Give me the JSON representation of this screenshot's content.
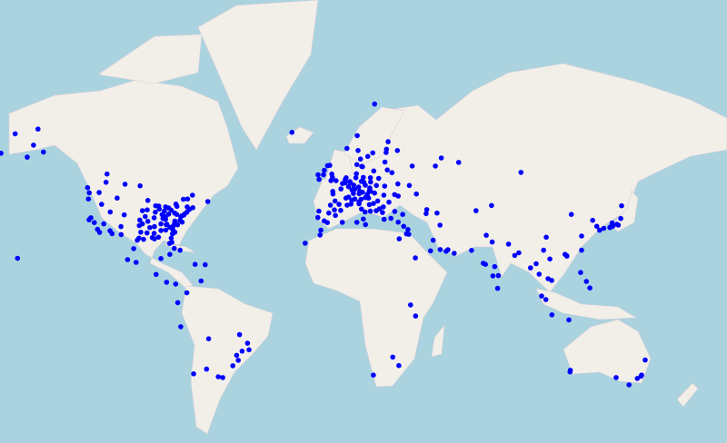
{
  "map": {
    "projection": "web-mercator",
    "colors": {
      "ocean": "#aad3df",
      "land": "#f2efe9",
      "marker": "#0000ff"
    },
    "points": [
      [
        40.7,
        -74
      ],
      [
        42.4,
        -71
      ],
      [
        40,
        -75.2
      ],
      [
        38.9,
        -77
      ],
      [
        39.3,
        -76.6
      ],
      [
        40.4,
        -80
      ],
      [
        41.5,
        -81.7
      ],
      [
        42.3,
        -83
      ],
      [
        41.9,
        -87.6
      ],
      [
        39.8,
        -86.2
      ],
      [
        40,
        -83
      ],
      [
        39.1,
        -84.5
      ],
      [
        38.3,
        -85.8
      ],
      [
        36.2,
        -86.8
      ],
      [
        33.7,
        -84.4
      ],
      [
        35.2,
        -80.8
      ],
      [
        35.8,
        -78.6
      ],
      [
        37.5,
        -77.4
      ],
      [
        36.9,
        -76.3
      ],
      [
        30.3,
        -81.7
      ],
      [
        28.5,
        -81.4
      ],
      [
        28,
        -82.5
      ],
      [
        25.8,
        -80.2
      ],
      [
        30,
        -90
      ],
      [
        29.8,
        -95.4
      ],
      [
        32.8,
        -96.8
      ],
      [
        30.3,
        -97.7
      ],
      [
        29.4,
        -98.5
      ],
      [
        35.5,
        -97.5
      ],
      [
        39.1,
        -94.6
      ],
      [
        38.6,
        -90.2
      ],
      [
        35.1,
        -90
      ],
      [
        45,
        -93.3
      ],
      [
        43,
        -87.9
      ],
      [
        39.7,
        -105
      ],
      [
        40.8,
        -111.9
      ],
      [
        33.4,
        -112
      ],
      [
        35.1,
        -106.6
      ],
      [
        34,
        -118.2
      ],
      [
        32.7,
        -117.2
      ],
      [
        37.8,
        -122.4
      ],
      [
        47.6,
        -122.3
      ],
      [
        45.5,
        -122.7
      ],
      [
        36.2,
        -115.1
      ],
      [
        43.7,
        -79.4
      ],
      [
        45.5,
        -73.6
      ],
      [
        45.4,
        -75.7
      ],
      [
        49.3,
        -123.1
      ],
      [
        51,
        -114
      ],
      [
        49.9,
        -97.1
      ],
      [
        41.6,
        -93.6
      ],
      [
        41.3,
        -96
      ],
      [
        34.7,
        -92.3
      ],
      [
        33.5,
        -86.8
      ],
      [
        36,
        -83.9
      ],
      [
        42.9,
        -78.9
      ],
      [
        42.7,
        -73.8
      ],
      [
        41.8,
        -72.7
      ],
      [
        43.1,
        -89.4
      ],
      [
        38,
        -84.5
      ],
      [
        32.8,
        -79.9
      ],
      [
        32.1,
        -81.1
      ],
      [
        36.2,
        -96
      ],
      [
        37.7,
        -97.3
      ],
      [
        31.8,
        -106.5
      ],
      [
        43.6,
        -116.2
      ],
      [
        47.7,
        -117.4
      ],
      [
        45.8,
        -108.5
      ],
      [
        34,
        -81
      ],
      [
        30.7,
        -88
      ],
      [
        32.3,
        -90.2
      ],
      [
        32.5,
        -93.7
      ],
      [
        30.5,
        -91.1
      ],
      [
        44.6,
        -63.6
      ],
      [
        46.8,
        -71.2
      ],
      [
        53.5,
        -113.5
      ],
      [
        50.4,
        -104.6
      ],
      [
        38.6,
        -121.5
      ],
      [
        36.7,
        -119.8
      ],
      [
        32.2,
        -111
      ],
      [
        37.3,
        -79.9
      ],
      [
        39.9,
        -79
      ],
      [
        41.1,
        -85.1
      ],
      [
        42.7,
        -84.5
      ],
      [
        40.7,
        -89.6
      ],
      [
        37.2,
        -93.3
      ],
      [
        35.9,
        -84.2
      ],
      [
        34.8,
        -82.4
      ],
      [
        36.1,
        -80.2
      ],
      [
        39.6,
        -75.5
      ],
      [
        19.4,
        -99.1
      ],
      [
        25.7,
        -100.3
      ],
      [
        20.7,
        -103.3
      ],
      [
        21.2,
        -86.8
      ],
      [
        23.1,
        -82.4
      ],
      [
        61.2,
        -149.9
      ],
      [
        64.8,
        -147.7
      ],
      [
        21.3,
        -157.8
      ],
      [
        59.2,
        -166
      ],
      [
        63.8,
        -159
      ],
      [
        58.2,
        -153
      ],
      [
        59.5,
        -145
      ],
      [
        9,
        -79.5
      ],
      [
        9.9,
        -84
      ],
      [
        13.7,
        -89.2
      ],
      [
        10.5,
        -66.9
      ],
      [
        4.7,
        -74
      ],
      [
        -0.2,
        -78.5
      ],
      [
        -12,
        -77
      ],
      [
        -33.4,
        -70.6
      ],
      [
        -34.6,
        -58.4
      ],
      [
        -34.9,
        -56.2
      ],
      [
        -23.5,
        -46.6
      ],
      [
        -22.9,
        -43.2
      ],
      [
        -15.8,
        -47.9
      ],
      [
        -30,
        -51.2
      ],
      [
        -25.4,
        -49.3
      ],
      [
        -31.4,
        -64.2
      ],
      [
        -17.8,
        -63.2
      ],
      [
        -19.9,
        -43.9
      ],
      [
        -27.6,
        -48.5
      ],
      [
        18.5,
        -69.9
      ],
      [
        18.3,
        -64.9
      ],
      [
        25,
        -77.3
      ],
      [
        64.1,
        -21.9
      ],
      [
        28.1,
        -15.4
      ],
      [
        51.5,
        -0.1
      ],
      [
        48.9,
        2.35
      ],
      [
        52.5,
        13.4
      ],
      [
        40.4,
        -3.7
      ],
      [
        41.4,
        2.2
      ],
      [
        38.7,
        -9.1
      ],
      [
        41.1,
        -8.6
      ],
      [
        41.9,
        12.5
      ],
      [
        45.5,
        9.2
      ],
      [
        40.8,
        14.3
      ],
      [
        48.2,
        16.4
      ],
      [
        50.1,
        14.4
      ],
      [
        52.2,
        21
      ],
      [
        47.5,
        19
      ],
      [
        52.4,
        4.9
      ],
      [
        50.8,
        4.4
      ],
      [
        47.4,
        8.5
      ],
      [
        46.2,
        6.1
      ],
      [
        48.1,
        11.6
      ],
      [
        50.1,
        8.7
      ],
      [
        53.6,
        10
      ],
      [
        50.9,
        7
      ],
      [
        55.7,
        12.6
      ],
      [
        59.3,
        18.1
      ],
      [
        59.9,
        10.8
      ],
      [
        60.2,
        24.9
      ],
      [
        53.3,
        -6.3
      ],
      [
        56,
        -3.2
      ],
      [
        53.5,
        -2.2
      ],
      [
        45.8,
        4.8
      ],
      [
        43.3,
        5.4
      ],
      [
        43.6,
        1.4
      ],
      [
        44.8,
        -0.6
      ],
      [
        37.4,
        -6
      ],
      [
        39.5,
        -0.4
      ],
      [
        38,
        23.7
      ],
      [
        41,
        29
      ],
      [
        39.9,
        32.9
      ],
      [
        44.4,
        26.1
      ],
      [
        42.7,
        23.3
      ],
      [
        44.8,
        20.5
      ],
      [
        45.8,
        16
      ],
      [
        46,
        14.5
      ],
      [
        50.5,
        30.5
      ],
      [
        53.9,
        27.6
      ],
      [
        54.7,
        25.3
      ],
      [
        56.9,
        24.1
      ],
      [
        59.4,
        24.7
      ],
      [
        55.8,
        37.6
      ],
      [
        59.9,
        30.3
      ],
      [
        50,
        19.9
      ],
      [
        54.4,
        18.6
      ],
      [
        69.6,
        19
      ],
      [
        60.4,
        5.3
      ],
      [
        57.7,
        12
      ],
      [
        55.8,
        49.1
      ],
      [
        56.8,
        60.6
      ],
      [
        58,
        52
      ],
      [
        54,
        91.5
      ],
      [
        36.7,
        -4.4
      ],
      [
        43.3,
        -2.9
      ],
      [
        41.6,
        -0.9
      ],
      [
        43.7,
        7.3
      ],
      [
        45.1,
        7.7
      ],
      [
        44.5,
        11.3
      ],
      [
        43.8,
        11.3
      ],
      [
        45.4,
        12.3
      ],
      [
        38.1,
        13.4
      ],
      [
        41.1,
        16.9
      ],
      [
        48.8,
        9.2
      ],
      [
        51.2,
        6.8
      ],
      [
        52.4,
        9.7
      ],
      [
        51.3,
        12.4
      ],
      [
        51,
        13.7
      ],
      [
        49.5,
        11.1
      ],
      [
        51.9,
        4.5
      ],
      [
        51.2,
        4.4
      ],
      [
        49.6,
        6.1
      ],
      [
        48.6,
        7.8
      ],
      [
        50.6,
        3.1
      ],
      [
        47.2,
        -1.6
      ],
      [
        48.1,
        -1.7
      ],
      [
        52.5,
        -1.9
      ],
      [
        51.5,
        -2.6
      ],
      [
        55.9,
        -4.3
      ],
      [
        54.6,
        -5.9
      ],
      [
        51.9,
        -8.5
      ],
      [
        56.2,
        10.2
      ],
      [
        55.6,
        13
      ],
      [
        51.1,
        17
      ],
      [
        52.4,
        16.9
      ],
      [
        48.1,
        17.1
      ],
      [
        49.2,
        16.6
      ],
      [
        47.1,
        15.4
      ],
      [
        47.8,
        13
      ],
      [
        47.3,
        11.4
      ],
      [
        43.5,
        16.4
      ],
      [
        43.9,
        18.4
      ],
      [
        42,
        21.4
      ],
      [
        41.3,
        19.8
      ],
      [
        40.6,
        22.9
      ],
      [
        38.4,
        27.1
      ],
      [
        36.9,
        30.7
      ],
      [
        46.8,
        23.6
      ],
      [
        47,
        28.9
      ],
      [
        46.5,
        30.7
      ],
      [
        49.8,
        24
      ],
      [
        50,
        36.2
      ],
      [
        35.2,
        33.4
      ],
      [
        35.9,
        14.5
      ],
      [
        53.3,
        -9
      ],
      [
        36.8,
        10.2
      ],
      [
        36.8,
        3
      ],
      [
        33.6,
        -7.6
      ],
      [
        31.6,
        -8
      ],
      [
        62,
        25.7
      ],
      [
        63.4,
        10.4
      ],
      [
        58.4,
        15.6
      ],
      [
        47.2,
        39.7
      ],
      [
        32.1,
        34.8
      ],
      [
        33.9,
        35.5
      ],
      [
        31.9,
        35.9
      ],
      [
        30,
        31.2
      ],
      [
        25.2,
        55.3
      ],
      [
        24.5,
        54.4
      ],
      [
        25.3,
        51.5
      ],
      [
        24.7,
        46.7
      ],
      [
        35.7,
        51.4
      ],
      [
        40.4,
        49.9
      ],
      [
        41.7,
        44.8
      ],
      [
        40.2,
        44.5
      ],
      [
        23.6,
        58.4
      ],
      [
        29.4,
        48
      ],
      [
        21.5,
        39.2
      ],
      [
        28.6,
        77.2
      ],
      [
        19,
        72.8
      ],
      [
        13,
        77.6
      ],
      [
        13.1,
        80.3
      ],
      [
        22.6,
        88.4
      ],
      [
        17.4,
        78.5
      ],
      [
        18.5,
        73.9
      ],
      [
        6.9,
        79.9
      ],
      [
        24.9,
        67
      ],
      [
        31.5,
        74.3
      ],
      [
        27.7,
        85.3
      ],
      [
        23.8,
        90.4
      ],
      [
        13.8,
        100.5
      ],
      [
        21,
        105.8
      ],
      [
        10.8,
        106.7
      ],
      [
        3.1,
        101.7
      ],
      [
        1.35,
        103.8
      ],
      [
        -6.2,
        106.8
      ],
      [
        -8.7,
        115.2
      ],
      [
        14.6,
        121
      ],
      [
        22.3,
        114.2
      ],
      [
        22.5,
        114.1
      ],
      [
        23.1,
        113.3
      ],
      [
        31.2,
        121.5
      ],
      [
        39.9,
        116.4
      ],
      [
        37.6,
        127
      ],
      [
        35.2,
        129
      ],
      [
        35.7,
        139.7
      ],
      [
        34.7,
        135.5
      ],
      [
        35,
        135.8
      ],
      [
        35.2,
        136.9
      ],
      [
        33.6,
        130.4
      ],
      [
        43.1,
        141.3
      ],
      [
        38.3,
        140.9
      ],
      [
        25,
        121.5
      ],
      [
        16.8,
        96.2
      ],
      [
        18.8,
        99
      ],
      [
        11.6,
        104.9
      ],
      [
        10.3,
        123.9
      ],
      [
        7.1,
        125.6
      ],
      [
        43.2,
        76.9
      ],
      [
        41.3,
        69.2
      ],
      [
        30.7,
        104
      ],
      [
        25,
        102.7
      ],
      [
        36,
        139
      ],
      [
        34.4,
        132.5
      ],
      [
        36.6,
        136.6
      ],
      [
        -1.3,
        36.8
      ],
      [
        -6.8,
        39.3
      ],
      [
        -26.2,
        28
      ],
      [
        -29.9,
        31
      ],
      [
        -33.9,
        18.4
      ],
      [
        -31.9,
        115.9
      ],
      [
        -32.6,
        115.8
      ],
      [
        -33.9,
        151.2
      ],
      [
        -37.8,
        145
      ],
      [
        -27.5,
        153
      ],
      [
        -34.9,
        138.6
      ],
      [
        -35.3,
        149.1
      ],
      [
        -34.4,
        150.9
      ]
    ]
  }
}
